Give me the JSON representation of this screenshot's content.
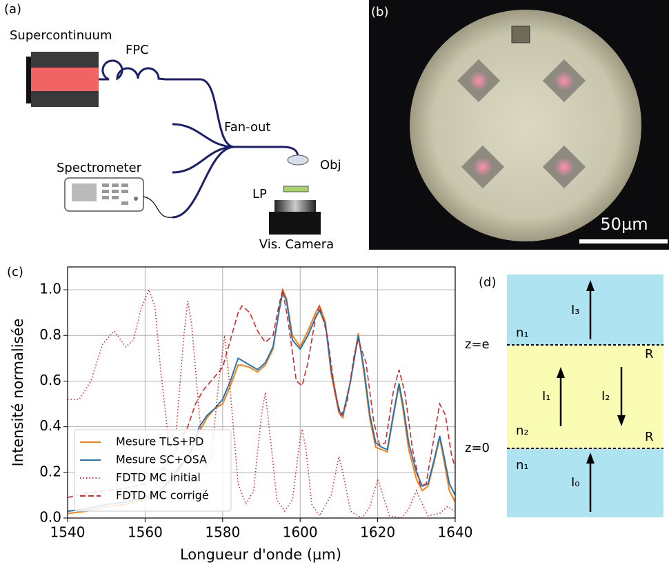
{
  "panel_a": {
    "label": "(a)",
    "supercontinuum": "Supercontinuum",
    "fpc": "FPC",
    "fan_out": "Fan-out",
    "spectrometer": "Spectrometer",
    "obj": "Obj",
    "lp": "LP",
    "camera": "Vis. Camera"
  },
  "panel_b": {
    "label": "(b)",
    "scale": "50µm"
  },
  "panel_d": {
    "label": "(d)",
    "z_e": "z=e",
    "z_0": "z=0",
    "n_top": "n₁",
    "n_mid": "n₂",
    "n_bottom": "n₁",
    "r_top": "R",
    "r_bottom": "R",
    "i3": "I₃",
    "i1": "I₁",
    "i2": "I₂",
    "i0": "I₀"
  },
  "chart_data": {
    "type": "line",
    "label": "(c)",
    "xlabel": "Longueur d'onde (µm)",
    "ylabel": "Intensité normalisée",
    "xlim": [
      1540,
      1640
    ],
    "ylim": [
      0,
      1.1
    ],
    "xticks": [
      1540,
      1560,
      1580,
      1600,
      1620,
      1640
    ],
    "yticks": [
      {
        "value": 0,
        "label": "0.0"
      },
      0.2,
      0.4,
      0.6,
      0.8,
      {
        "value": 1,
        "label": "1.0"
      }
    ],
    "grid": true,
    "legend": "lower left",
    "series": [
      {
        "name": "Mesure TLS+PD",
        "color": "#ff7f0e",
        "style": "solid",
        "x": [
          1540,
          1545,
          1550,
          1555,
          1560,
          1564,
          1567,
          1570,
          1572,
          1574,
          1576,
          1578,
          1580,
          1582,
          1584,
          1585,
          1587,
          1589,
          1591,
          1593,
          1594.5,
          1595.5,
          1596.5,
          1598,
          1600,
          1602,
          1604,
          1605,
          1606.5,
          1608,
          1610,
          1611,
          1613,
          1615,
          1616.5,
          1618,
          1619.5,
          1621,
          1622.5,
          1624,
          1625.5,
          1626.5,
          1628,
          1630,
          1631.5,
          1633,
          1634.5,
          1636,
          1637,
          1638.5,
          1640
        ],
        "values": [
          0.02,
          0.03,
          0.05,
          0.06,
          0.08,
          0.11,
          0.17,
          0.24,
          0.3,
          0.38,
          0.44,
          0.48,
          0.5,
          0.58,
          0.67,
          0.67,
          0.66,
          0.64,
          0.67,
          0.74,
          0.9,
          1.0,
          0.96,
          0.8,
          0.75,
          0.82,
          0.9,
          0.93,
          0.86,
          0.63,
          0.46,
          0.44,
          0.6,
          0.81,
          0.63,
          0.43,
          0.31,
          0.3,
          0.29,
          0.44,
          0.58,
          0.48,
          0.3,
          0.17,
          0.12,
          0.14,
          0.24,
          0.35,
          0.26,
          0.12,
          0.07
        ]
      },
      {
        "name": "Mesure SC+OSA",
        "color": "#1f77b4",
        "style": "solid",
        "x": [
          1540,
          1545,
          1550,
          1555,
          1560,
          1564,
          1567,
          1570,
          1572,
          1574,
          1576,
          1578,
          1580,
          1582,
          1584,
          1585,
          1587,
          1589,
          1591,
          1593,
          1594.5,
          1595.5,
          1596.5,
          1598,
          1600,
          1602,
          1604,
          1605,
          1606.5,
          1608,
          1610,
          1611,
          1613,
          1615,
          1616.5,
          1618,
          1619.5,
          1621,
          1622.5,
          1624,
          1625.5,
          1626.5,
          1628,
          1630,
          1631.5,
          1633,
          1634.5,
          1636,
          1637,
          1638.5,
          1640
        ],
        "values": [
          0.03,
          0.04,
          0.06,
          0.07,
          0.09,
          0.12,
          0.18,
          0.25,
          0.3,
          0.4,
          0.45,
          0.48,
          0.52,
          0.6,
          0.7,
          0.69,
          0.67,
          0.65,
          0.68,
          0.75,
          0.9,
          0.99,
          0.95,
          0.78,
          0.74,
          0.8,
          0.88,
          0.91,
          0.85,
          0.65,
          0.47,
          0.45,
          0.6,
          0.8,
          0.65,
          0.45,
          0.33,
          0.31,
          0.3,
          0.45,
          0.59,
          0.5,
          0.33,
          0.2,
          0.14,
          0.15,
          0.25,
          0.36,
          0.28,
          0.15,
          0.1
        ]
      },
      {
        "name": "FDTD MC initial",
        "color": "#d62728",
        "style": "dotted",
        "x": [
          1540,
          1543,
          1546,
          1549,
          1552,
          1555,
          1557,
          1559,
          1561,
          1562.5,
          1564,
          1566,
          1568,
          1570,
          1571,
          1572,
          1574,
          1575.5,
          1577,
          1579,
          1580.5,
          1582,
          1584,
          1586,
          1588,
          1590,
          1591,
          1592,
          1594,
          1596,
          1598,
          1600,
          1600.5,
          1601.5,
          1603,
          1605,
          1608,
          1610,
          1611,
          1613,
          1616,
          1618,
          1620,
          1621,
          1623,
          1626,
          1628,
          1630,
          1631,
          1633,
          1636,
          1638,
          1640
        ],
        "values": [
          0.52,
          0.52,
          0.6,
          0.76,
          0.82,
          0.75,
          0.78,
          0.92,
          1.0,
          0.93,
          0.65,
          0.35,
          0.38,
          0.8,
          0.95,
          0.85,
          0.45,
          0.22,
          0.25,
          0.6,
          0.8,
          0.55,
          0.15,
          0.06,
          0.12,
          0.45,
          0.55,
          0.4,
          0.08,
          0.03,
          0.08,
          0.35,
          0.39,
          0.3,
          0.06,
          0.01,
          0.1,
          0.27,
          0.2,
          0.03,
          0.0,
          0.05,
          0.17,
          0.12,
          0.01,
          0.0,
          0.04,
          0.12,
          0.08,
          0.01,
          0.02,
          0.05,
          0.03
        ]
      },
      {
        "name": "FDTD MC corrigé",
        "color": "#d62728",
        "style": "dashed",
        "x": [
          1540,
          1545,
          1550,
          1555,
          1560,
          1565,
          1568,
          1571,
          1573,
          1575,
          1578,
          1580,
          1582,
          1584,
          1585,
          1587,
          1589,
          1591,
          1593,
          1594.5,
          1595.5,
          1597,
          1599,
          1600.5,
          1602,
          1604,
          1605,
          1607,
          1609,
          1610.5,
          1612,
          1614,
          1615,
          1617,
          1619,
          1620.5,
          1622,
          1624,
          1625.5,
          1627,
          1629,
          1631,
          1632.5,
          1634,
          1636,
          1637.5,
          1639,
          1640
        ],
        "values": [
          0.09,
          0.11,
          0.12,
          0.13,
          0.15,
          0.22,
          0.3,
          0.4,
          0.5,
          0.56,
          0.62,
          0.66,
          0.78,
          0.9,
          0.93,
          0.9,
          0.82,
          0.77,
          0.8,
          0.93,
          1.0,
          0.85,
          0.6,
          0.58,
          0.68,
          0.88,
          0.93,
          0.8,
          0.55,
          0.45,
          0.5,
          0.72,
          0.78,
          0.68,
          0.42,
          0.32,
          0.33,
          0.55,
          0.65,
          0.55,
          0.3,
          0.14,
          0.15,
          0.3,
          0.5,
          0.45,
          0.28,
          0.22
        ]
      }
    ]
  }
}
